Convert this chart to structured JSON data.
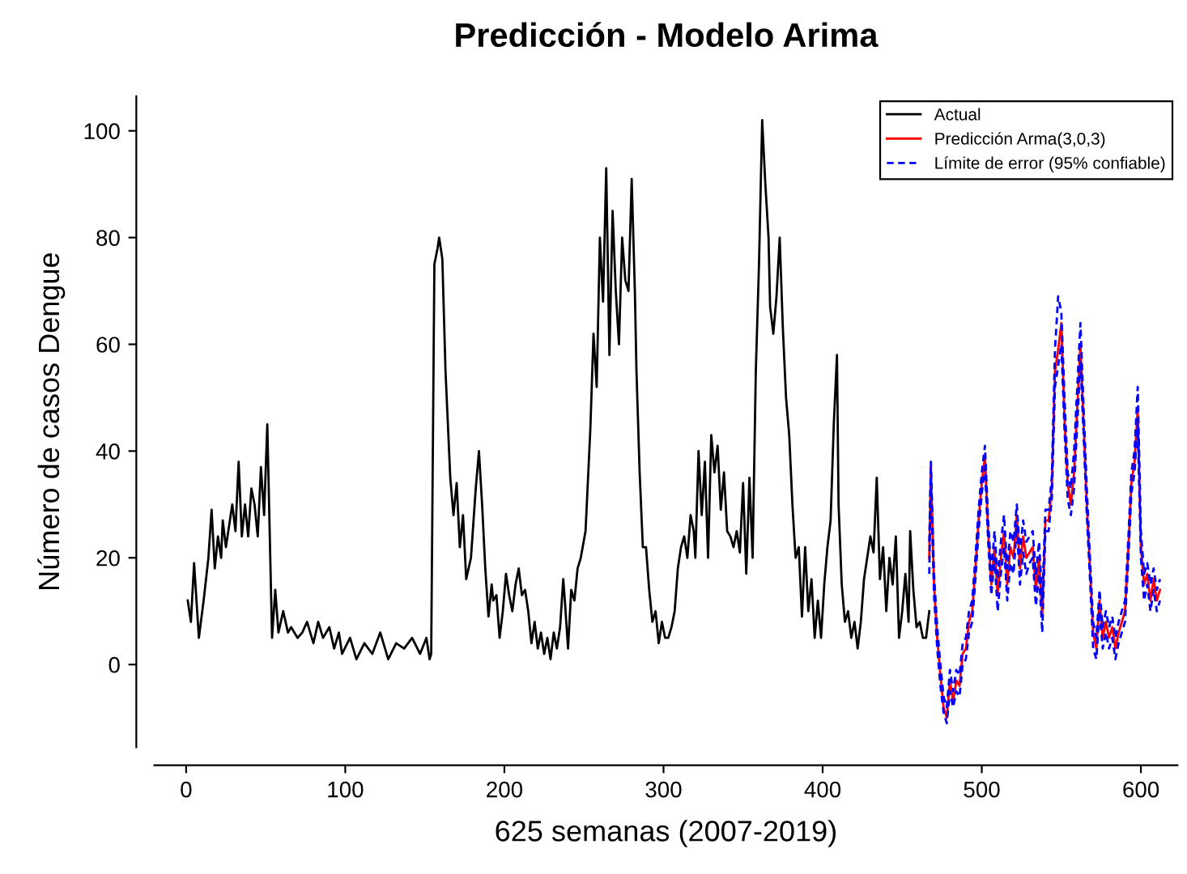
{
  "chart_data": {
    "type": "line",
    "title": "Predicción - Modelo Arima",
    "xlabel": "625 semanas (2007-2019)",
    "ylabel": "Número de casos Dengue",
    "xlim": [
      -20,
      623
    ],
    "ylim": [
      -15.5,
      106.5
    ],
    "xticks": [
      0,
      100,
      200,
      300,
      400,
      500,
      600
    ],
    "yticks": [
      0,
      20,
      40,
      60,
      80,
      100
    ],
    "grid": false,
    "legend": "top right",
    "series": [
      {
        "name": "Actual",
        "color": "#000000",
        "line_style": "solid",
        "x": [
          1,
          3,
          5,
          8,
          11,
          14,
          16,
          18,
          20,
          22,
          23,
          25,
          29,
          31,
          33,
          35,
          37,
          39,
          41,
          43,
          45,
          47,
          49,
          51,
          54,
          56,
          58,
          61,
          64,
          66,
          70,
          73,
          76,
          80,
          83,
          86,
          90,
          93,
          96,
          98,
          103,
          107,
          112,
          117,
          122,
          127,
          132,
          137,
          142,
          147,
          151,
          153,
          154,
          156,
          158,
          159,
          161,
          163,
          166,
          168,
          170,
          172,
          174,
          176,
          179,
          182,
          184,
          186,
          188,
          190,
          192,
          193,
          195,
          197,
          199,
          201,
          203,
          205,
          207,
          209,
          211,
          213,
          215,
          217,
          219,
          221,
          223,
          225,
          227,
          229,
          231,
          233,
          235,
          237,
          238,
          240,
          242,
          244,
          246,
          248,
          251,
          254,
          256,
          258,
          260,
          262,
          264,
          266,
          268,
          270,
          272,
          274,
          276,
          278,
          280,
          282,
          283,
          285,
          287,
          289,
          291,
          293,
          295,
          297,
          299,
          301,
          303,
          305,
          307,
          309,
          311,
          313,
          315,
          317,
          319,
          320,
          322,
          324,
          326,
          328,
          330,
          332,
          334,
          336,
          338,
          340,
          342,
          344,
          346,
          348,
          350,
          352,
          354,
          356,
          358,
          360,
          362,
          364,
          366,
          367,
          369,
          371,
          373,
          375,
          377,
          379,
          381,
          383,
          385,
          387,
          389,
          391,
          393,
          395,
          397,
          399,
          401,
          403,
          405,
          407,
          409,
          410,
          412,
          414,
          416,
          418,
          420,
          422,
          424,
          426,
          428,
          430,
          432,
          434,
          436,
          438,
          440,
          442,
          444,
          446,
          448,
          450,
          452,
          454,
          455,
          457,
          459,
          461,
          463,
          465,
          467
        ],
        "values": [
          12,
          8,
          19,
          5,
          12,
          20,
          29,
          18,
          24,
          20,
          27,
          22,
          30,
          25,
          38,
          24,
          30,
          24,
          33,
          30,
          24,
          37,
          28,
          45,
          5,
          14,
          6,
          10,
          6,
          7,
          5,
          6,
          8,
          4,
          8,
          5,
          7,
          3,
          6,
          2,
          5,
          1,
          4,
          2,
          6,
          1,
          4,
          3,
          5,
          2,
          5,
          1,
          2,
          75,
          78,
          80,
          76,
          55,
          35,
          28,
          34,
          22,
          28,
          16,
          20,
          33,
          40,
          30,
          18,
          9,
          15,
          12,
          13,
          5,
          10,
          17,
          13,
          10,
          15,
          18,
          13,
          14,
          10,
          4,
          8,
          3,
          6,
          2,
          5,
          1,
          6,
          3,
          7,
          16,
          12,
          3,
          14,
          12,
          18,
          20,
          25,
          44,
          62,
          52,
          80,
          68,
          93,
          58,
          85,
          70,
          60,
          80,
          72,
          70,
          91,
          70,
          55,
          36,
          22,
          22,
          14,
          8,
          10,
          4,
          8,
          5,
          5,
          7,
          10,
          18,
          22,
          24,
          20,
          28,
          25,
          20,
          40,
          28,
          38,
          20,
          43,
          36,
          41,
          29,
          36,
          25,
          24,
          22,
          25,
          21,
          34,
          17,
          35,
          20,
          55,
          75,
          102,
          90,
          80,
          67,
          62,
          69,
          80,
          63,
          50,
          43,
          30,
          20,
          22,
          9,
          22,
          10,
          16,
          5,
          12,
          5,
          15,
          22,
          27,
          45,
          58,
          30,
          15,
          8,
          10,
          5,
          8,
          3,
          8,
          16,
          20,
          24,
          21,
          35,
          16,
          22,
          10,
          20,
          15,
          24,
          5,
          10,
          17,
          8,
          25,
          14,
          7,
          8,
          5,
          5,
          10
        ]
      },
      {
        "name": "Predicción Arma(3,0,3)",
        "color": "#ff0000",
        "line_style": "solid",
        "x": [
          467,
          468,
          470,
          472,
          474,
          476,
          478,
          480,
          482,
          484,
          486,
          488,
          490,
          492,
          494,
          496,
          498,
          500,
          502,
          504,
          506,
          508,
          510,
          512,
          514,
          516,
          518,
          520,
          522,
          524,
          526,
          528,
          530,
          532,
          534,
          536,
          538,
          540,
          542,
          544,
          546,
          548,
          550,
          552,
          554,
          556,
          558,
          560,
          562,
          564,
          566,
          568,
          570,
          572,
          574,
          576,
          578,
          580,
          582,
          584,
          586,
          588,
          590,
          592,
          594,
          596,
          598,
          600,
          602,
          604,
          606,
          608,
          610,
          612
        ],
        "values": [
          20,
          37,
          15,
          5,
          -2,
          -8,
          -10,
          -3,
          -7,
          -3,
          -4,
          2,
          3,
          8,
          10,
          18,
          27,
          34,
          39,
          25,
          15,
          22,
          13,
          20,
          25,
          15,
          22,
          20,
          28,
          18,
          24,
          20,
          21,
          22,
          14,
          20,
          9,
          27,
          27,
          33,
          55,
          59,
          64,
          46,
          34,
          30,
          36,
          48,
          60,
          45,
          30,
          18,
          6,
          3,
          12,
          5,
          8,
          5,
          7,
          3,
          6,
          8,
          10,
          21,
          34,
          38,
          48,
          22,
          15,
          17,
          12,
          16,
          12,
          14
        ]
      },
      {
        "name": "Límite de error (95% confiable)",
        "color": "#0000ff",
        "line_style": "dashed",
        "x": [
          467,
          468,
          470,
          472,
          474,
          476,
          478,
          480,
          482,
          484,
          486,
          488,
          490,
          492,
          494,
          496,
          498,
          500,
          502,
          504,
          506,
          508,
          510,
          512,
          514,
          516,
          518,
          520,
          522,
          524,
          526,
          528,
          530,
          532,
          534,
          536,
          538,
          540,
          542,
          544,
          546,
          548,
          550,
          552,
          554,
          556,
          558,
          560,
          562,
          564,
          566,
          568,
          570,
          572,
          574,
          576,
          578,
          580,
          582,
          584,
          586,
          588,
          590,
          592,
          594,
          596,
          598,
          600,
          602,
          604,
          606,
          608,
          610,
          612
        ],
        "values": [
          23,
          38,
          17,
          7,
          0,
          -6,
          -8,
          -1,
          -5,
          -1,
          -2,
          4,
          5,
          10,
          12,
          20,
          29,
          36,
          41,
          27,
          17,
          25,
          16,
          23,
          28,
          18,
          25,
          23,
          30,
          21,
          27,
          23,
          24,
          25,
          17,
          23,
          12,
          29,
          29,
          35,
          59,
          69,
          66,
          50,
          36,
          33,
          40,
          52,
          64,
          48,
          33,
          20,
          8,
          5,
          14,
          7,
          10,
          7,
          9,
          5,
          8,
          10,
          12,
          23,
          36,
          40,
          52,
          25,
          17,
          19,
          15,
          18,
          14,
          16
        ]
      },
      {
        "color": "#0000ff",
        "line_style": "dashed",
        "x": [
          467,
          468,
          470,
          472,
          474,
          476,
          478,
          480,
          482,
          484,
          486,
          488,
          490,
          492,
          494,
          496,
          498,
          500,
          502,
          504,
          506,
          508,
          510,
          512,
          514,
          516,
          518,
          520,
          522,
          524,
          526,
          528,
          530,
          532,
          534,
          536,
          538,
          540,
          542,
          544,
          546,
          548,
          550,
          552,
          554,
          556,
          558,
          560,
          562,
          564,
          566,
          568,
          570,
          572,
          574,
          576,
          578,
          580,
          582,
          584,
          586,
          588,
          590,
          592,
          594,
          596,
          598,
          600,
          602,
          604,
          606,
          608,
          610,
          612
        ],
        "values": [
          17,
          35,
          13,
          3,
          -4,
          -9,
          -11,
          -5,
          -8,
          -5,
          -6,
          0,
          1,
          6,
          8,
          16,
          25,
          32,
          37,
          23,
          13,
          20,
          10,
          17,
          22,
          12,
          19,
          17,
          26,
          15,
          21,
          17,
          19,
          20,
          11,
          17,
          6,
          25,
          25,
          31,
          52,
          56,
          60,
          44,
          31,
          28,
          33,
          45,
          57,
          43,
          28,
          16,
          3,
          1,
          10,
          3,
          6,
          3,
          5,
          1,
          4,
          6,
          8,
          19,
          32,
          36,
          45,
          20,
          12,
          15,
          10,
          14,
          10,
          12
        ]
      }
    ]
  }
}
